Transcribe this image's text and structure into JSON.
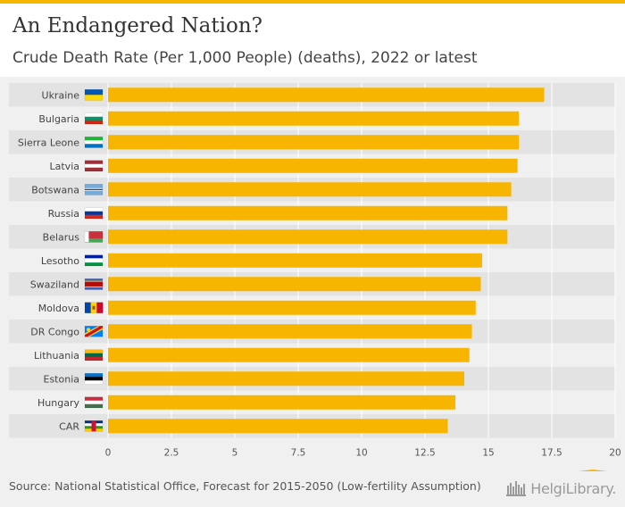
{
  "header": {
    "title": "An Endangered Nation?",
    "subtitle": "Crude Death Rate (Per 1,000 People) (deaths), 2022 or latest"
  },
  "footer": {
    "source": "Source: National Statistical Office, Forecast for 2015-2050 (Low-fertility Assumption)",
    "logo_text": "HelgiLibrary."
  },
  "colors": {
    "bar": "#f7b500",
    "row_band": "#e3e3e3",
    "grid": "#ffffff",
    "map_land": "#d2d2d2",
    "map_highlight": "#f7b500"
  },
  "chart_data": {
    "type": "bar",
    "orientation": "horizontal",
    "title": "An Endangered Nation?",
    "subtitle": "Crude Death Rate (Per 1,000 People) (deaths), 2022 or latest",
    "categories": [
      "Ukraine",
      "Bulgaria",
      "Sierra Leone",
      "Latvia",
      "Botswana",
      "Russia",
      "Belarus",
      "Lesotho",
      "Swaziland",
      "Moldova",
      "DR Congo",
      "Lithuania",
      "Estonia",
      "Hungary",
      "CAR"
    ],
    "values": [
      17.2,
      16.2,
      16.2,
      16.15,
      15.9,
      15.75,
      15.75,
      14.75,
      14.7,
      14.5,
      14.35,
      14.25,
      14.05,
      13.7,
      13.4
    ],
    "xlim": [
      0,
      20
    ],
    "xticks": [
      "0",
      "2.5",
      "5",
      "7.5",
      "10",
      "12.5",
      "15",
      "17.5",
      "20"
    ],
    "xlabel": "",
    "ylabel": "",
    "grid": true,
    "flags": [
      "ukraine-flag-icon",
      "bulgaria-flag-icon",
      "sierra-leone-flag-icon",
      "latvia-flag-icon",
      "botswana-flag-icon",
      "russia-flag-icon",
      "belarus-flag-icon",
      "lesotho-flag-icon",
      "swaziland-flag-icon",
      "moldova-flag-icon",
      "dr-congo-flag-icon",
      "lithuania-flag-icon",
      "estonia-flag-icon",
      "hungary-flag-icon",
      "car-flag-icon"
    ]
  }
}
